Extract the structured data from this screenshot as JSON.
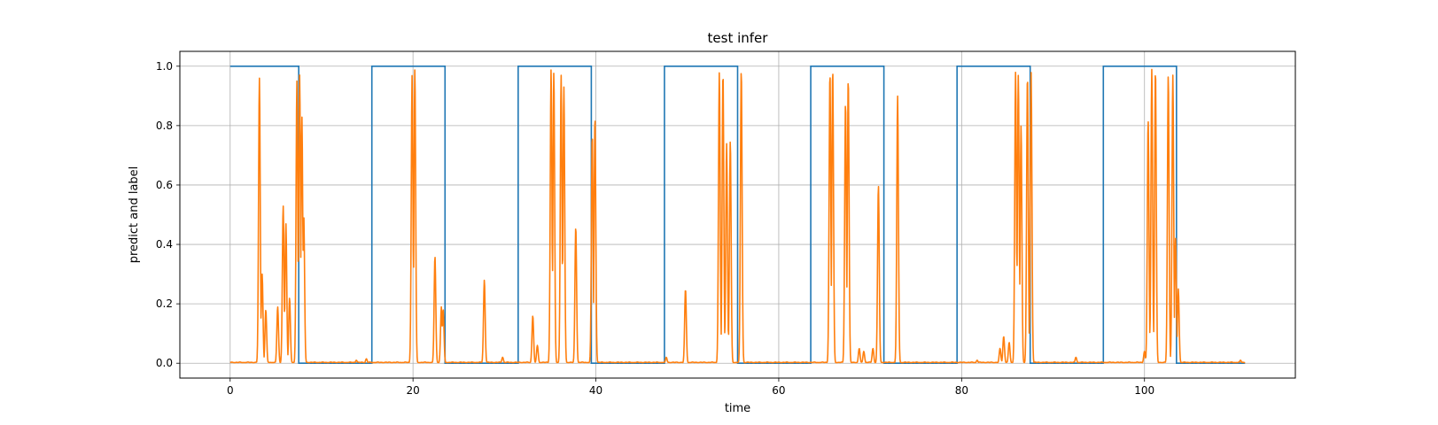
{
  "chart_data": {
    "type": "line",
    "title": "test infer",
    "xlabel": "time",
    "ylabel": "predict and label",
    "xlim": [
      -5.5,
      116.5
    ],
    "ylim": [
      -0.05,
      1.05
    ],
    "xticks": [
      "0",
      "20",
      "40",
      "60",
      "80",
      "100"
    ],
    "yticks": [
      "0.0",
      "0.2",
      "0.4",
      "0.6",
      "0.8",
      "1.0"
    ],
    "grid": true,
    "series": [
      {
        "color": "#1f77b4",
        "x": [
          0,
          7.5,
          7.5,
          15.5,
          15.5,
          23.5,
          23.5,
          31.5,
          31.5,
          39.5,
          39.5,
          47.5,
          47.5,
          55.5,
          55.5,
          63.5,
          63.5,
          71.5,
          71.5,
          79.5,
          79.5,
          87.5,
          87.5,
          95.5,
          95.5,
          103.5,
          103.5,
          111
        ],
        "y": [
          1,
          1,
          0,
          0,
          1,
          1,
          0,
          0,
          1,
          1,
          0,
          0,
          1,
          1,
          0,
          0,
          1,
          1,
          0,
          0,
          1,
          1,
          0,
          0,
          1,
          1,
          0,
          0
        ]
      },
      {
        "color": "#ff7f0e",
        "peaks": [
          [
            3.2,
            0.96
          ],
          [
            3.5,
            0.3
          ],
          [
            3.9,
            0.18
          ],
          [
            5.2,
            0.19
          ],
          [
            5.8,
            0.53
          ],
          [
            6.1,
            0.47
          ],
          [
            6.5,
            0.22
          ],
          [
            7.3,
            0.95
          ],
          [
            7.6,
            0.97
          ],
          [
            7.85,
            0.83
          ],
          [
            8.05,
            0.5
          ],
          [
            13.8,
            0.01
          ],
          [
            14.9,
            0.015
          ],
          [
            19.9,
            0.97
          ],
          [
            20.2,
            0.99
          ],
          [
            22.4,
            0.36
          ],
          [
            23.1,
            0.19
          ],
          [
            23.3,
            0.18
          ],
          [
            27.8,
            0.28
          ],
          [
            29.8,
            0.02
          ],
          [
            33.1,
            0.16
          ],
          [
            33.6,
            0.06
          ],
          [
            35.1,
            0.99
          ],
          [
            35.4,
            0.98
          ],
          [
            36.2,
            0.97
          ],
          [
            36.5,
            0.93
          ],
          [
            37.8,
            0.46
          ],
          [
            39.6,
            0.77
          ],
          [
            39.9,
            0.83
          ],
          [
            47.7,
            0.02
          ],
          [
            49.8,
            0.25
          ],
          [
            53.5,
            0.98
          ],
          [
            53.9,
            0.98
          ],
          [
            54.3,
            0.74
          ],
          [
            54.7,
            0.75
          ],
          [
            55.9,
            0.99
          ],
          [
            65.6,
            0.98
          ],
          [
            65.9,
            0.99
          ],
          [
            67.3,
            0.88
          ],
          [
            67.6,
            0.96
          ],
          [
            68.8,
            0.05
          ],
          [
            69.3,
            0.04
          ],
          [
            70.3,
            0.05
          ],
          [
            70.9,
            0.6
          ],
          [
            73,
            0.9
          ],
          [
            81.7,
            0.01
          ],
          [
            84.2,
            0.05
          ],
          [
            84.6,
            0.09
          ],
          [
            85.2,
            0.07
          ],
          [
            85.9,
            0.98
          ],
          [
            86.2,
            0.97
          ],
          [
            86.5,
            0.8
          ],
          [
            87.2,
            0.97
          ],
          [
            87.6,
            0.98
          ],
          [
            92.5,
            0.02
          ],
          [
            100,
            0.04
          ],
          [
            100.4,
            0.82
          ],
          [
            100.8,
            0.99
          ],
          [
            101.2,
            0.99
          ],
          [
            102.6,
            0.97
          ],
          [
            103.1,
            0.97
          ],
          [
            103.4,
            0.42
          ],
          [
            103.7,
            0.25
          ],
          [
            110.5,
            0.01
          ]
        ]
      }
    ]
  }
}
